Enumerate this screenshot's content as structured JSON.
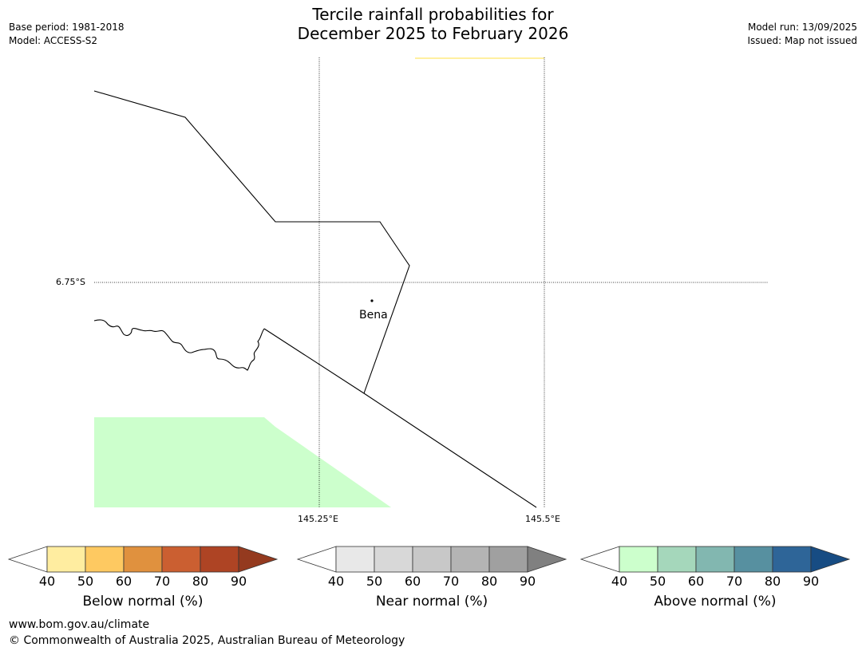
{
  "header": {
    "title_line1": "Tercile rainfall probabilities for",
    "title_line2": "December 2025 to February 2026",
    "base_period": "Base period: 1981-2018",
    "model": "Model: ACCESS-S2",
    "model_run": "Model run: 13/09/2025",
    "issued": "Issued: Map not issued"
  },
  "map": {
    "latitude_labels": [
      "6.75°S"
    ],
    "longitude_labels": [
      "145.25°E",
      "145.5°E"
    ],
    "places": [
      {
        "name": "Bena"
      }
    ],
    "colors": {
      "boundary": "#000000",
      "gridline": "#000000",
      "above_normal_40_50": "#ccffcc",
      "below_normal_40_50": "#fff0a0"
    }
  },
  "colorbars": [
    {
      "name": "below-normal",
      "label": "Below normal (%)",
      "ticks": [
        "40",
        "50",
        "60",
        "70",
        "80",
        "90"
      ],
      "colors": [
        "#ffffff",
        "#ffeda0",
        "#fec961",
        "#e0913e",
        "#cb5f31",
        "#ae4424",
        "#943a1f"
      ]
    },
    {
      "name": "near-normal",
      "label": "Near normal (%)",
      "ticks": [
        "40",
        "50",
        "60",
        "70",
        "80",
        "90"
      ],
      "colors": [
        "#ffffff",
        "#e8e8e8",
        "#d8d8d8",
        "#c8c8c8",
        "#b4b4b4",
        "#a0a0a0",
        "#808080"
      ]
    },
    {
      "name": "above-normal",
      "label": "Above normal (%)",
      "ticks": [
        "40",
        "50",
        "60",
        "70",
        "80",
        "90"
      ],
      "colors": [
        "#ffffff",
        "#ccffcc",
        "#a5d7bb",
        "#82b7b0",
        "#5790a0",
        "#2e6598",
        "#174c83"
      ]
    }
  ],
  "footer": {
    "url": "www.bom.gov.au/climate",
    "copyright": "© Commonwealth of Australia 2025, Australian Bureau of Meteorology"
  }
}
